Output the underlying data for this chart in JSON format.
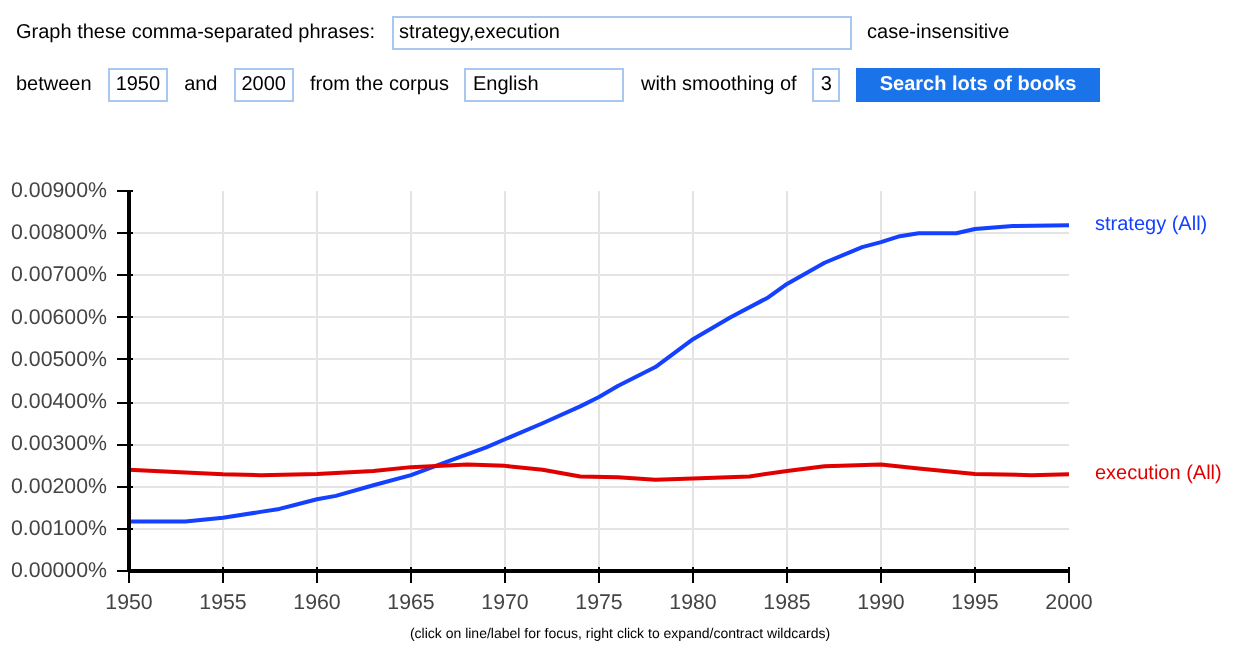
{
  "chart_data": {
    "type": "line",
    "annotations": [
      "Graph these comma-separated phrases:",
      "strategy,execution",
      "case-insensitive",
      "between",
      "1950",
      "and",
      "2000",
      "from the corpus",
      "English",
      "with smoothing of",
      "3",
      "Search lots of books",
      "(click on line/label for focus, right click to expand/contract wildcards)"
    ],
    "series": [
      {
        "name": "strategy (All)",
        "color": "#1440ff",
        "x": [
          1950,
          1953,
          1955,
          1957,
          1958,
          1960,
          1961,
          1963,
          1965,
          1967,
          1969,
          1970,
          1972,
          1974,
          1975,
          1976,
          1978,
          1980,
          1982,
          1984,
          1985,
          1987,
          1989,
          1990,
          1991,
          1992,
          1994,
          1995,
          1997,
          2000
        ],
        "values": [
          0.00117,
          0.00117,
          0.00126,
          0.0014,
          0.00147,
          0.0017,
          0.00178,
          0.00203,
          0.00227,
          0.0026,
          0.00293,
          0.00312,
          0.0035,
          0.0039,
          0.00412,
          0.00438,
          0.00483,
          0.00549,
          0.00601,
          0.00648,
          0.0068,
          0.0073,
          0.00767,
          0.00779,
          0.00793,
          0.008,
          0.008,
          0.0081,
          0.00817,
          0.00819
        ]
      },
      {
        "name": "execution (All)",
        "color": "#e00000",
        "x": [
          1950,
          1953,
          1955,
          1957,
          1960,
          1963,
          1965,
          1968,
          1970,
          1972,
          1974,
          1976,
          1978,
          1980,
          1983,
          1985,
          1987,
          1990,
          1992,
          1995,
          1998,
          2000
        ],
        "values": [
          0.0024,
          0.00233,
          0.00229,
          0.00227,
          0.0023,
          0.00237,
          0.00246,
          0.00252,
          0.00249,
          0.0024,
          0.00224,
          0.00222,
          0.00216,
          0.00219,
          0.00224,
          0.00237,
          0.00248,
          0.00252,
          0.00243,
          0.0023,
          0.00227,
          0.00229
        ]
      }
    ],
    "xlim": [
      1950,
      2000
    ],
    "xticks": [
      1950,
      1955,
      1960,
      1965,
      1970,
      1975,
      1980,
      1985,
      1990,
      1995,
      2000
    ],
    "ylim": [
      0,
      0.009
    ],
    "yticks": [
      {
        "value": 0,
        "label": "0.00000%"
      },
      {
        "value": 0.001,
        "label": "0.00100%"
      },
      {
        "value": 0.002,
        "label": "0.00200%"
      },
      {
        "value": 0.003,
        "label": "0.00300%"
      },
      {
        "value": 0.004,
        "label": "0.00400%"
      },
      {
        "value": 0.005,
        "label": "0.00500%"
      },
      {
        "value": 0.006,
        "label": "0.00600%"
      },
      {
        "value": 0.007,
        "label": "0.00700%"
      },
      {
        "value": 0.008,
        "label": "0.00800%"
      },
      {
        "value": 0.009,
        "label": "0.00900%"
      }
    ],
    "grid": true,
    "line_style": "solid",
    "marker": "none"
  }
}
